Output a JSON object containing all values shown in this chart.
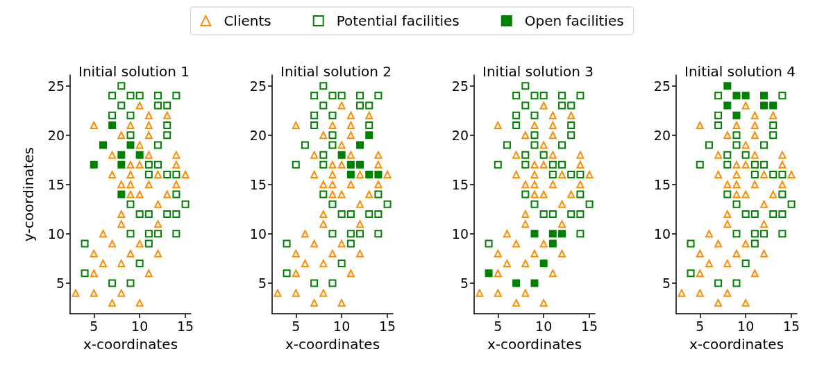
{
  "chart_data": [
    {
      "type": "scatter",
      "title": "Initial solution 1",
      "xlabel": "x-coordinates",
      "ylabel": "y-coordinates",
      "xlim": [
        2.4,
        15.6
      ],
      "ylim": [
        1.9,
        26.1
      ],
      "xticks": [
        5,
        10,
        15
      ],
      "yticks": [
        5,
        10,
        15,
        20,
        25
      ],
      "legend": "top",
      "series": [
        {
          "name": "Clients",
          "color": "#ff8c00",
          "marker": "triangle",
          "x": [
            10,
            11,
            13,
            5,
            9,
            11,
            8,
            11,
            10,
            7,
            11,
            14,
            9,
            10,
            14,
            7,
            9,
            12,
            15,
            8,
            9,
            11,
            14,
            9,
            10,
            13,
            12,
            8,
            8,
            12,
            6,
            7,
            10,
            5,
            9,
            12,
            6,
            8,
            5,
            11,
            3,
            5,
            8,
            7,
            10
          ],
          "values": [
            23,
            22,
            22,
            21,
            21,
            21,
            20,
            20,
            19,
            18,
            18,
            18,
            17,
            17,
            17,
            16,
            16,
            16,
            16,
            15,
            15,
            15,
            15,
            14,
            14,
            14,
            13,
            12,
            11,
            11,
            10,
            9,
            9,
            8,
            8,
            8,
            7,
            7,
            6,
            6,
            4,
            4,
            4,
            3,
            3
          ]
        },
        {
          "name": "Potential facilities",
          "color": "#008000",
          "marker": "square",
          "x": [
            8,
            7,
            9,
            10,
            12,
            14,
            8,
            12,
            13,
            7,
            9,
            13,
            9,
            13,
            12,
            11,
            12,
            11,
            13,
            14,
            14,
            9,
            15,
            10,
            11,
            13,
            14,
            9,
            11,
            12,
            14,
            4,
            11,
            10,
            4,
            7,
            9
          ],
          "values": [
            25,
            24,
            24,
            24,
            24,
            24,
            23,
            23,
            23,
            22,
            22,
            21,
            20,
            20,
            19,
            17,
            17,
            16,
            16,
            16,
            14,
            13,
            13,
            12,
            12,
            12,
            12,
            10,
            10,
            10,
            10,
            9,
            9,
            7,
            6,
            5,
            5
          ]
        },
        {
          "name": "Open facilities",
          "color": "#008000",
          "marker": "square",
          "x": [
            7,
            6,
            9,
            8,
            10,
            5,
            8,
            8
          ],
          "values": [
            21,
            19,
            19,
            18,
            18,
            17,
            17,
            14
          ]
        }
      ]
    },
    {
      "type": "scatter",
      "title": "Initial solution 2",
      "xlabel": "x-coordinates",
      "xlim": [
        2.4,
        15.6
      ],
      "ylim": [
        1.9,
        26.1
      ],
      "xticks": [
        5,
        10,
        15
      ],
      "yticks": [
        5,
        10,
        15,
        20,
        25
      ],
      "series": [
        {
          "color": "#ff8c00",
          "marker": "triangle",
          "x": [
            10,
            11,
            13,
            5,
            9,
            11,
            8,
            11,
            10,
            7,
            11,
            14,
            9,
            10,
            14,
            7,
            9,
            12,
            15,
            8,
            9,
            11,
            14,
            9,
            10,
            13,
            12,
            8,
            8,
            12,
            6,
            7,
            10,
            5,
            9,
            12,
            6,
            8,
            5,
            11,
            3,
            5,
            8,
            7,
            10
          ],
          "values": [
            23,
            22,
            22,
            21,
            21,
            21,
            20,
            20,
            19,
            18,
            18,
            18,
            17,
            17,
            17,
            16,
            16,
            16,
            16,
            15,
            15,
            15,
            15,
            14,
            14,
            14,
            13,
            12,
            11,
            11,
            10,
            9,
            9,
            8,
            8,
            8,
            7,
            7,
            6,
            6,
            4,
            4,
            4,
            3,
            3
          ]
        },
        {
          "color": "#008000",
          "marker": "square",
          "x": [
            8,
            7,
            9,
            10,
            12,
            14,
            8,
            12,
            13,
            7,
            9,
            7,
            13,
            9,
            6,
            9,
            8,
            5,
            8,
            8,
            14,
            9,
            15,
            10,
            11,
            13,
            14,
            9,
            11,
            12,
            14,
            4,
            11,
            10,
            4,
            7,
            9
          ],
          "values": [
            25,
            24,
            24,
            24,
            24,
            24,
            23,
            23,
            23,
            22,
            22,
            21,
            21,
            20,
            19,
            19,
            18,
            17,
            17,
            14,
            14,
            13,
            13,
            12,
            12,
            12,
            12,
            10,
            10,
            10,
            10,
            9,
            9,
            7,
            6,
            5,
            5
          ]
        },
        {
          "color": "#008000",
          "marker": "square",
          "x": [
            13,
            12,
            10,
            11,
            12,
            11,
            13,
            14
          ],
          "values": [
            20,
            19,
            18,
            17,
            17,
            16,
            16,
            16
          ]
        }
      ]
    },
    {
      "type": "scatter",
      "title": "Initial solution 3",
      "xlabel": "x-coordinates",
      "xlim": [
        2.4,
        15.6
      ],
      "ylim": [
        1.9,
        26.1
      ],
      "xticks": [
        5,
        10,
        15
      ],
      "yticks": [
        5,
        10,
        15,
        20,
        25
      ],
      "series": [
        {
          "color": "#ff8c00",
          "marker": "triangle",
          "x": [
            10,
            11,
            13,
            5,
            9,
            11,
            8,
            11,
            10,
            7,
            11,
            14,
            9,
            10,
            14,
            7,
            9,
            12,
            15,
            8,
            9,
            11,
            14,
            9,
            10,
            13,
            12,
            8,
            8,
            12,
            6,
            7,
            10,
            5,
            9,
            12,
            6,
            8,
            5,
            11,
            3,
            5,
            8,
            7,
            10
          ],
          "values": [
            23,
            22,
            22,
            21,
            21,
            21,
            20,
            20,
            19,
            18,
            18,
            18,
            17,
            17,
            17,
            16,
            16,
            16,
            16,
            15,
            15,
            15,
            15,
            14,
            14,
            14,
            13,
            12,
            11,
            11,
            10,
            9,
            9,
            8,
            8,
            8,
            7,
            7,
            6,
            6,
            4,
            4,
            4,
            3,
            3
          ]
        },
        {
          "color": "#008000",
          "marker": "square",
          "x": [
            8,
            7,
            9,
            10,
            12,
            14,
            8,
            12,
            13,
            7,
            9,
            7,
            13,
            9,
            13,
            6,
            9,
            12,
            8,
            10,
            5,
            8,
            11,
            12,
            11,
            13,
            14,
            8,
            14,
            9,
            15,
            10,
            11,
            13,
            14,
            14,
            4
          ],
          "values": [
            25,
            24,
            24,
            24,
            24,
            24,
            23,
            23,
            23,
            22,
            22,
            21,
            21,
            20,
            20,
            19,
            19,
            19,
            18,
            18,
            17,
            17,
            17,
            17,
            16,
            16,
            16,
            14,
            14,
            13,
            13,
            12,
            12,
            12,
            12,
            10,
            9
          ]
        },
        {
          "color": "#008000",
          "marker": "square",
          "x": [
            9,
            11,
            12,
            11,
            10,
            4,
            7,
            9
          ],
          "values": [
            10,
            10,
            10,
            9,
            7,
            6,
            5,
            5
          ]
        }
      ]
    },
    {
      "type": "scatter",
      "title": "Initial solution 4",
      "xlabel": "x-coordinates",
      "xlim": [
        2.4,
        15.6
      ],
      "ylim": [
        1.9,
        26.1
      ],
      "xticks": [
        5,
        10,
        15
      ],
      "yticks": [
        5,
        10,
        15,
        20,
        25
      ],
      "series": [
        {
          "color": "#ff8c00",
          "marker": "triangle",
          "x": [
            10,
            11,
            13,
            5,
            9,
            11,
            8,
            11,
            10,
            7,
            11,
            14,
            9,
            10,
            14,
            7,
            9,
            12,
            15,
            8,
            9,
            11,
            14,
            9,
            10,
            13,
            12,
            8,
            8,
            12,
            6,
            7,
            10,
            5,
            9,
            12,
            6,
            8,
            5,
            11,
            3,
            5,
            8,
            7,
            10
          ],
          "values": [
            23,
            22,
            22,
            21,
            21,
            21,
            20,
            20,
            19,
            18,
            18,
            18,
            17,
            17,
            17,
            16,
            16,
            16,
            16,
            15,
            15,
            15,
            15,
            14,
            14,
            14,
            13,
            12,
            11,
            11,
            10,
            9,
            9,
            8,
            8,
            8,
            7,
            7,
            6,
            6,
            4,
            4,
            4,
            3,
            3
          ]
        },
        {
          "color": "#008000",
          "marker": "square",
          "x": [
            7,
            14,
            7,
            7,
            13,
            9,
            13,
            6,
            9,
            12,
            8,
            10,
            5,
            8,
            11,
            12,
            11,
            13,
            14,
            8,
            14,
            9,
            15,
            10,
            11,
            13,
            14,
            9,
            11,
            12,
            14,
            4,
            11,
            10,
            4,
            7,
            9
          ],
          "values": [
            24,
            24,
            22,
            21,
            21,
            20,
            20,
            19,
            19,
            19,
            18,
            18,
            17,
            17,
            17,
            17,
            16,
            16,
            16,
            14,
            14,
            13,
            13,
            12,
            12,
            12,
            12,
            10,
            10,
            10,
            10,
            9,
            9,
            7,
            6,
            5,
            5
          ]
        },
        {
          "color": "#008000",
          "marker": "square",
          "x": [
            8,
            9,
            10,
            12,
            8,
            12,
            13,
            9
          ],
          "values": [
            25,
            24,
            24,
            24,
            23,
            23,
            23,
            22
          ]
        }
      ]
    }
  ]
}
